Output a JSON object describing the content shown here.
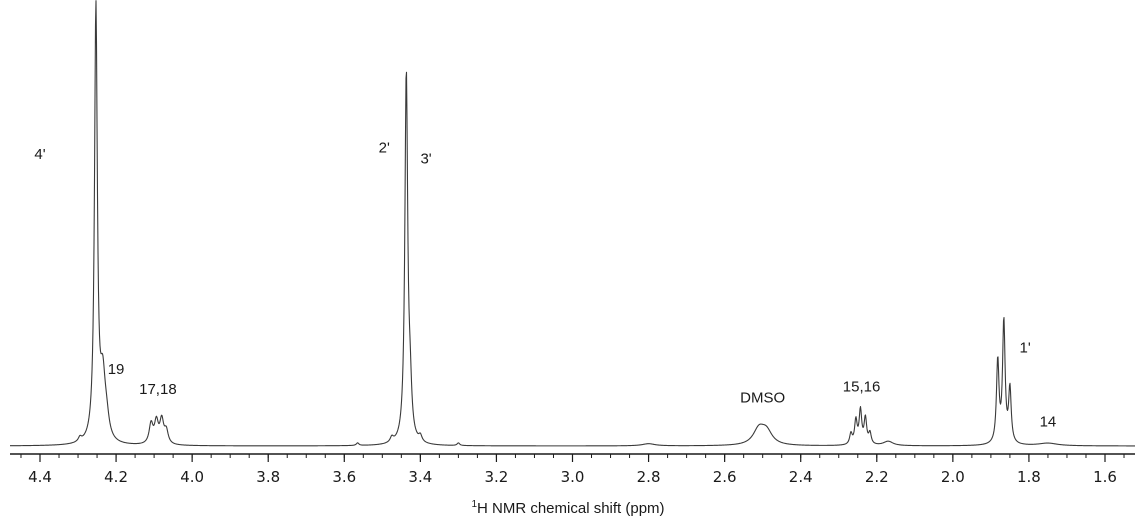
{
  "chart_data": {
    "type": "line",
    "xlabel_sup": "1",
    "xlabel": "H NMR chemical shift (ppm)",
    "x_reversed": true,
    "xlim": [
      4.6,
      1.5
    ],
    "ylim": [
      0,
      100
    ],
    "grid": false,
    "legend": "none",
    "ticks": [
      "4.4",
      "4.2",
      "4.0",
      "3.8",
      "3.6",
      "3.4",
      "3.2",
      "3.0",
      "2.8",
      "2.6",
      "2.4",
      "2.2",
      "2.0",
      "1.8",
      "1.6"
    ],
    "tick_values": [
      4.4,
      4.2,
      4.0,
      3.8,
      3.6,
      3.4,
      3.2,
      3.0,
      2.8,
      2.6,
      2.4,
      2.2,
      2.0,
      1.8,
      1.6
    ],
    "peaks": [
      {
        "x": 4.295,
        "h": 1.0,
        "w": 0.005
      },
      {
        "x": 4.253,
        "h": 100,
        "w": 0.0045
      },
      {
        "x": 4.235,
        "h": 13.5,
        "w": 0.008
      },
      {
        "x": 4.225,
        "h": 4.0,
        "w": 0.008
      },
      {
        "x": 4.108,
        "h": 4.6,
        "w": 0.006
      },
      {
        "x": 4.094,
        "h": 5.0,
        "w": 0.006
      },
      {
        "x": 4.08,
        "h": 5.4,
        "w": 0.006
      },
      {
        "x": 4.068,
        "h": 3.0,
        "w": 0.006
      },
      {
        "x": 3.565,
        "h": 0.6,
        "w": 0.004
      },
      {
        "x": 3.475,
        "h": 1.2,
        "w": 0.005
      },
      {
        "x": 3.437,
        "h": 85,
        "w": 0.0045
      },
      {
        "x": 3.427,
        "h": 10,
        "w": 0.005
      },
      {
        "x": 3.4,
        "h": 1.4,
        "w": 0.005
      },
      {
        "x": 3.3,
        "h": 0.6,
        "w": 0.004
      },
      {
        "x": 2.8,
        "h": 0.5,
        "w": 0.02
      },
      {
        "x": 2.51,
        "h": 3.5,
        "w": 0.018
      },
      {
        "x": 2.49,
        "h": 3.0,
        "w": 0.018
      },
      {
        "x": 2.268,
        "h": 2.5,
        "w": 0.004
      },
      {
        "x": 2.255,
        "h": 5.5,
        "w": 0.004
      },
      {
        "x": 2.243,
        "h": 7.8,
        "w": 0.004
      },
      {
        "x": 2.23,
        "h": 6.0,
        "w": 0.004
      },
      {
        "x": 2.218,
        "h": 2.6,
        "w": 0.004
      },
      {
        "x": 2.17,
        "h": 1.0,
        "w": 0.015
      },
      {
        "x": 1.882,
        "h": 19,
        "w": 0.004
      },
      {
        "x": 1.866,
        "h": 28,
        "w": 0.004
      },
      {
        "x": 1.85,
        "h": 12.5,
        "w": 0.004
      },
      {
        "x": 1.75,
        "h": 0.6,
        "w": 0.03
      }
    ],
    "annotations": [
      {
        "text": "4'",
        "x": 4.4,
        "y": 66
      },
      {
        "text": "19",
        "x": 4.2,
        "y": 16.5
      },
      {
        "text": "17,18",
        "x": 4.09,
        "y": 12
      },
      {
        "text": "2'",
        "x": 3.495,
        "y": 67.5
      },
      {
        "text": "3'",
        "x": 3.385,
        "y": 65
      },
      {
        "text": "DMSO",
        "x": 2.5,
        "y": 10
      },
      {
        "text": "15,16",
        "x": 2.24,
        "y": 12.5
      },
      {
        "text": "1'",
        "x": 1.81,
        "y": 21.5
      },
      {
        "text": "14",
        "x": 1.75,
        "y": 4.5
      }
    ]
  }
}
